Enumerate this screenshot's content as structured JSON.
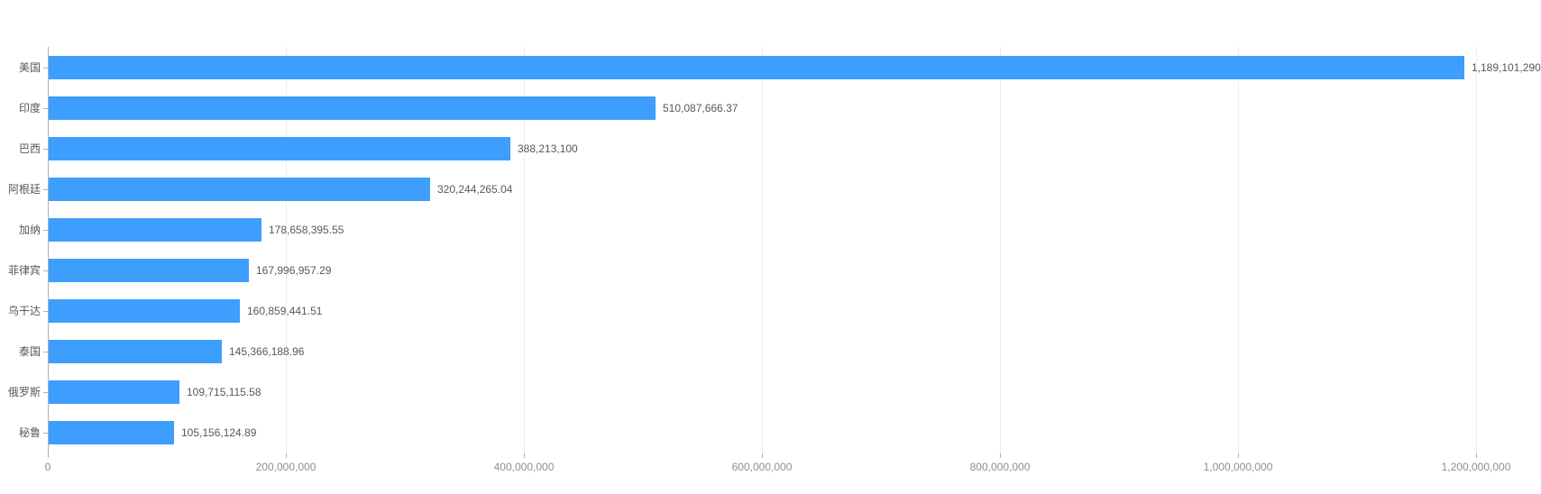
{
  "chart_data": {
    "type": "bar",
    "orientation": "horizontal",
    "title": "",
    "categories": [
      "美国",
      "印度",
      "巴西",
      "阿根廷",
      "加纳",
      "菲律宾",
      "乌干达",
      "泰国",
      "俄罗斯",
      "秘鲁"
    ],
    "values": [
      1189101290,
      510087666.37,
      388213100,
      320244265.04,
      178658395.55,
      167996957.29,
      160859441.51,
      145366188.96,
      109715115.58,
      105156124.89
    ],
    "value_labels": [
      "1,189,101,290",
      "510,087,666.37",
      "388,213,100",
      "320,244,265.04",
      "178,658,395.55",
      "167,996,957.29",
      "160,859,441.51",
      "145,366,188.96",
      "109,715,115.58",
      "105,156,124.89"
    ],
    "x_tick_labels": [
      "0",
      "200,000,000",
      "400,000,000",
      "600,000,000",
      "800,000,000",
      "1,000,000,000",
      "1,200,000,000"
    ],
    "x_tick_values": [
      0,
      200000000,
      400000000,
      600000000,
      800000000,
      1000000000,
      1200000000
    ],
    "xlim": [
      0,
      1200000000
    ],
    "grid": true,
    "legend": false,
    "colors": {
      "bar": "#3d9efd",
      "axis_line": "#aeb2b8",
      "gridline": "#ececef",
      "label_text": "#55585f",
      "tick_text": "#8a8f99",
      "background": "#ffffff"
    }
  }
}
